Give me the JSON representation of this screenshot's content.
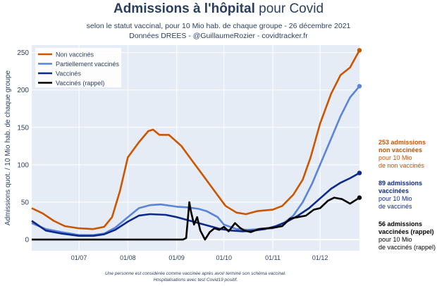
{
  "title": {
    "bold": "Admissions à l'hôpital",
    "rest": " pour Covid"
  },
  "subtitle_lines": [
    "selon le statut vaccinal, pour 10 Mio hab. de chaque groupe - 26 décembre 2021",
    "Données DREES - @GuillaumeRozier - covidtracker.fr"
  ],
  "footnotes": [
    "Une personne est considérée comme vaccinée après avoir terminé son schéma vaccinal.",
    "Hospitalisations avec test Covid19 positif."
  ],
  "annotations": [
    {
      "bold": [
        "253 admissions",
        "non vaccinées"
      ],
      "normal": [
        "pour 10 Mio",
        "de non vaccinés"
      ],
      "color": "#cc5500"
    },
    {
      "bold": [
        "89 admissions",
        "vaccinées"
      ],
      "normal": [
        "pour 10 Mio",
        "de vaccinés"
      ],
      "color": "#0d2a8a"
    },
    {
      "bold": [
        "56 admissions",
        "vaccinées (rappel)"
      ],
      "normal": [
        "pour 10 Mio",
        "de vaccinés (rappel)"
      ],
      "color": "#000000"
    }
  ],
  "chart_data": {
    "type": "line",
    "title": "Admissions à l'hôpital pour Covid",
    "xlabel": "",
    "ylabel": "Admissions quot. / 10 Mio hab. de chaque groupe",
    "x_range": [
      "2021-06-01",
      "2021-12-26"
    ],
    "ylim": [
      -15,
      260
    ],
    "y_ticks": [
      0,
      50,
      100,
      150,
      200,
      250
    ],
    "x_ticks": [
      {
        "date": "2021-07-01",
        "label": "01/07"
      },
      {
        "date": "2021-08-01",
        "label": "01/08"
      },
      {
        "date": "2021-09-01",
        "label": "01/09"
      },
      {
        "date": "2021-10-01",
        "label": "01/10"
      },
      {
        "date": "2021-11-01",
        "label": "01/11"
      },
      {
        "date": "2021-12-01",
        "label": "01/12"
      }
    ],
    "grid": true,
    "legend_position": "top-left",
    "series": [
      {
        "name": "Non vaccinés",
        "color": "#cc5500",
        "points": [
          [
            "2021-06-01",
            42
          ],
          [
            "2021-06-08",
            35
          ],
          [
            "2021-06-15",
            25
          ],
          [
            "2021-06-22",
            18
          ],
          [
            "2021-07-01",
            15
          ],
          [
            "2021-07-10",
            14
          ],
          [
            "2021-07-17",
            17
          ],
          [
            "2021-07-22",
            30
          ],
          [
            "2021-07-27",
            65
          ],
          [
            "2021-08-01",
            110
          ],
          [
            "2021-08-08",
            130
          ],
          [
            "2021-08-14",
            145
          ],
          [
            "2021-08-17",
            147
          ],
          [
            "2021-08-21",
            140
          ],
          [
            "2021-08-27",
            140
          ],
          [
            "2021-09-04",
            125
          ],
          [
            "2021-09-11",
            105
          ],
          [
            "2021-09-18",
            85
          ],
          [
            "2021-09-25",
            65
          ],
          [
            "2021-10-02",
            45
          ],
          [
            "2021-10-09",
            36
          ],
          [
            "2021-10-15",
            34
          ],
          [
            "2021-10-22",
            38
          ],
          [
            "2021-11-01",
            40
          ],
          [
            "2021-11-07",
            45
          ],
          [
            "2021-11-14",
            60
          ],
          [
            "2021-11-20",
            80
          ],
          [
            "2021-11-25",
            110
          ],
          [
            "2021-12-01",
            155
          ],
          [
            "2021-12-08",
            195
          ],
          [
            "2021-12-14",
            220
          ],
          [
            "2021-12-20",
            230
          ],
          [
            "2021-12-26",
            253
          ]
        ]
      },
      {
        "name": "Partiellement vaccinés",
        "color": "#5a84d8",
        "points": [
          [
            "2021-06-01",
            22
          ],
          [
            "2021-06-10",
            14
          ],
          [
            "2021-06-20",
            10
          ],
          [
            "2021-07-01",
            6
          ],
          [
            "2021-07-10",
            6
          ],
          [
            "2021-07-17",
            8
          ],
          [
            "2021-07-24",
            16
          ],
          [
            "2021-08-01",
            30
          ],
          [
            "2021-08-08",
            42
          ],
          [
            "2021-08-15",
            46
          ],
          [
            "2021-08-22",
            47
          ],
          [
            "2021-09-01",
            44
          ],
          [
            "2021-09-08",
            43
          ],
          [
            "2021-09-15",
            41
          ],
          [
            "2021-09-20",
            38
          ],
          [
            "2021-09-27",
            30
          ],
          [
            "2021-10-01",
            20
          ],
          [
            "2021-10-09",
            14
          ],
          [
            "2021-10-16",
            13
          ],
          [
            "2021-10-24",
            14
          ],
          [
            "2021-11-01",
            15
          ],
          [
            "2021-11-08",
            22
          ],
          [
            "2021-11-14",
            32
          ],
          [
            "2021-11-20",
            50
          ],
          [
            "2021-11-26",
            75
          ],
          [
            "2021-12-01",
            100
          ],
          [
            "2021-12-08",
            135
          ],
          [
            "2021-12-14",
            165
          ],
          [
            "2021-12-20",
            190
          ],
          [
            "2021-12-26",
            205
          ]
        ]
      },
      {
        "name": "Vaccinés",
        "color": "#0d2a8a",
        "points": [
          [
            "2021-06-01",
            25
          ],
          [
            "2021-06-10",
            12
          ],
          [
            "2021-06-20",
            8
          ],
          [
            "2021-07-01",
            5
          ],
          [
            "2021-07-10",
            5
          ],
          [
            "2021-07-17",
            7
          ],
          [
            "2021-07-24",
            13
          ],
          [
            "2021-08-01",
            24
          ],
          [
            "2021-08-08",
            32
          ],
          [
            "2021-08-15",
            34
          ],
          [
            "2021-08-25",
            33
          ],
          [
            "2021-09-01",
            30
          ],
          [
            "2021-09-08",
            26
          ],
          [
            "2021-09-15",
            22
          ],
          [
            "2021-09-22",
            18
          ],
          [
            "2021-09-29",
            14
          ],
          [
            "2021-10-06",
            12
          ],
          [
            "2021-10-13",
            11
          ],
          [
            "2021-10-20",
            12
          ],
          [
            "2021-10-27",
            14
          ],
          [
            "2021-11-03",
            18
          ],
          [
            "2021-11-10",
            24
          ],
          [
            "2021-11-17",
            32
          ],
          [
            "2021-11-24",
            42
          ],
          [
            "2021-12-01",
            55
          ],
          [
            "2021-12-08",
            68
          ],
          [
            "2021-12-14",
            76
          ],
          [
            "2021-12-20",
            82
          ],
          [
            "2021-12-26",
            89
          ]
        ]
      },
      {
        "name": "Vaccinés (rappel)",
        "color": "#000000",
        "points": [
          [
            "2021-06-01",
            0
          ],
          [
            "2021-09-05",
            0
          ],
          [
            "2021-09-07",
            2
          ],
          [
            "2021-09-08",
            25
          ],
          [
            "2021-09-09",
            50
          ],
          [
            "2021-09-10",
            38
          ],
          [
            "2021-09-12",
            20
          ],
          [
            "2021-09-14",
            30
          ],
          [
            "2021-09-16",
            12
          ],
          [
            "2021-09-19",
            0
          ],
          [
            "2021-09-22",
            10
          ],
          [
            "2021-09-25",
            15
          ],
          [
            "2021-09-28",
            13
          ],
          [
            "2021-10-01",
            17
          ],
          [
            "2021-10-04",
            11
          ],
          [
            "2021-10-08",
            22
          ],
          [
            "2021-10-11",
            16
          ],
          [
            "2021-10-14",
            12
          ],
          [
            "2021-10-18",
            10
          ],
          [
            "2021-10-23",
            14
          ],
          [
            "2021-10-28",
            15
          ],
          [
            "2021-11-02",
            16
          ],
          [
            "2021-11-07",
            18
          ],
          [
            "2021-11-12",
            28
          ],
          [
            "2021-11-17",
            30
          ],
          [
            "2021-11-22",
            32
          ],
          [
            "2021-11-27",
            40
          ],
          [
            "2021-12-01",
            42
          ],
          [
            "2021-12-06",
            52
          ],
          [
            "2021-12-10",
            56
          ],
          [
            "2021-12-15",
            54
          ],
          [
            "2021-12-20",
            48
          ],
          [
            "2021-12-26",
            56
          ]
        ]
      }
    ]
  }
}
